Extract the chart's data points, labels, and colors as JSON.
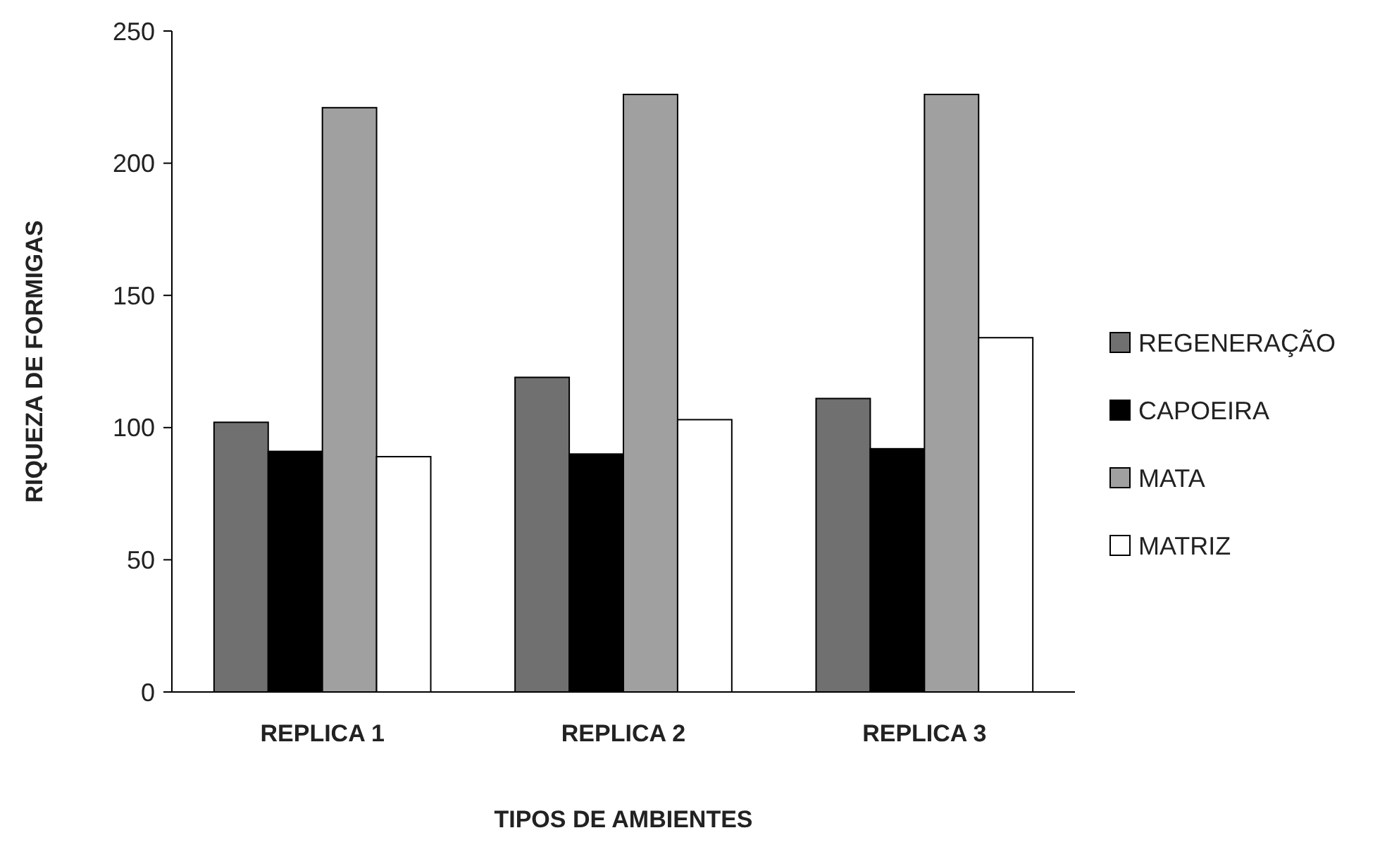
{
  "chart_data": {
    "type": "bar",
    "xlabel": "TIPOS DE AMBIENTES",
    "ylabel": "RIQUEZA DE FORMIGAS",
    "categories": [
      "REPLICA 1",
      "REPLICA 2",
      "REPLICA 3"
    ],
    "series": [
      {
        "name": "REGENERAÇÃO",
        "color": "#707070",
        "values": [
          102,
          119,
          111
        ]
      },
      {
        "name": "CAPOEIRA",
        "color": "#000000",
        "values": [
          91,
          90,
          92
        ]
      },
      {
        "name": "MATA",
        "color": "#a0a0a0",
        "values": [
          221,
          226,
          226
        ]
      },
      {
        "name": "MATRIZ",
        "color": "#ffffff",
        "values": [
          89,
          103,
          134
        ]
      }
    ],
    "ylim": [
      0,
      250
    ],
    "yticks": [
      0,
      50,
      100,
      150,
      200,
      250
    ],
    "grid": false,
    "legend": "right"
  }
}
